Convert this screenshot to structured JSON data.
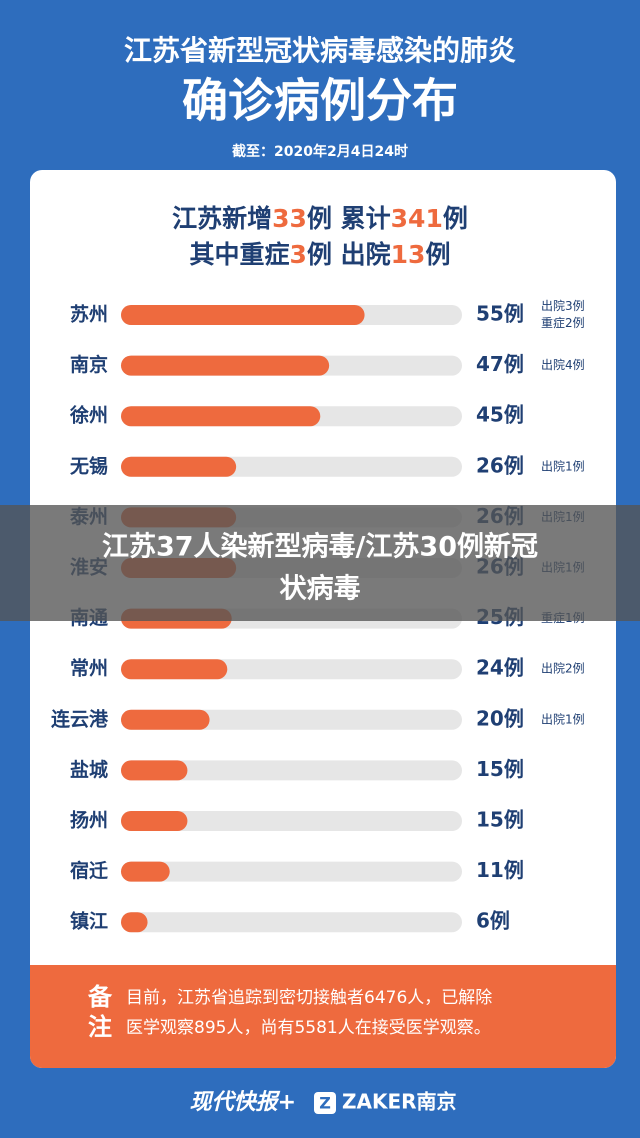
{
  "chart_data": {
    "type": "bar",
    "title": "江苏省新型冠状病毒感染的肺炎",
    "subtitle": "确诊病例分布",
    "date": "截至：2020年2月4日24时",
    "summary": [
      [
        "江苏新增",
        33,
        "例 累计",
        341,
        "例"
      ],
      [
        "其中重症",
        3,
        "例 出院",
        13,
        "例"
      ]
    ],
    "categories": [
      "苏州",
      "南京",
      "徐州",
      "无锡",
      "泰州",
      "淮安",
      "南通",
      "常州",
      "连云港",
      "盐城",
      "扬州",
      "宿迁",
      "镇江"
    ],
    "values": [
      55,
      47,
      45,
      26,
      26,
      26,
      25,
      24,
      20,
      15,
      15,
      11,
      6
    ],
    "value_labels": [
      "55例",
      "47例",
      "45例",
      "26例",
      "26例",
      "26例",
      "25例",
      "24例",
      "20例",
      "15例",
      "15例",
      "11例",
      "6例"
    ],
    "notes": [
      [
        "出院3例",
        "重症2例"
      ],
      [
        "出院4例"
      ],
      null,
      [
        "出院1例"
      ],
      [
        "出院1例"
      ],
      [
        "出院1例"
      ],
      [
        "重症1例"
      ],
      [
        "出院2例"
      ],
      [
        "出院1例"
      ],
      null,
      null,
      null,
      null
    ],
    "xlim": [
      0,
      77
    ],
    "color": "#ee6a3e",
    "remark_label": "备注",
    "remark": [
      "目前，江苏省追踪到密切接触者6476人，已解除",
      "医学观察895人，尚有5581人在接受医学观察。"
    ],
    "footer": {
      "brand": "现代快报+",
      "partner": "ZAKER南京"
    },
    "overlay": [
      "江苏37人染新型病毒/江苏30例新冠",
      "状病毒"
    ]
  }
}
